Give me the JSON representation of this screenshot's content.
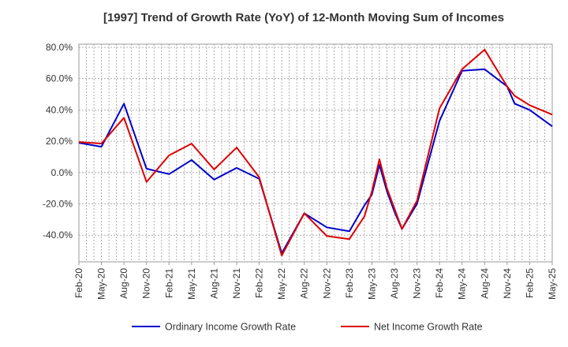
{
  "chart_data": {
    "type": "line",
    "title": "[1997]  Trend of Growth Rate (YoY) of 12-Month Moving Sum of Incomes",
    "xlabel": "",
    "ylabel": "",
    "ylim": [
      -57,
      82
    ],
    "y_ticks": [
      "80.0%",
      "60.0%",
      "40.0%",
      "20.0%",
      "0.0%",
      "-20.0%",
      "-40.0%"
    ],
    "y_tick_values": [
      80,
      60,
      40,
      20,
      0,
      -20,
      -40
    ],
    "x_tick_labels": [
      "Feb-20",
      "May-20",
      "Aug-20",
      "Nov-20",
      "Feb-21",
      "May-21",
      "Aug-21",
      "Nov-21",
      "Feb-22",
      "May-22",
      "Aug-22",
      "Nov-22",
      "Feb-23",
      "May-23",
      "Aug-23",
      "Nov-23",
      "Feb-24",
      "May-24",
      "Aug-24",
      "Nov-24",
      "Feb-25",
      "May-25"
    ],
    "x_months_range": [
      0,
      63
    ],
    "grid": true,
    "legend_position": "bottom",
    "series": [
      {
        "name": "Ordinary Income Growth Rate",
        "color": "#0000cc",
        "x": [
          0,
          3,
          6,
          9,
          12,
          15,
          18,
          21,
          24,
          27,
          30,
          33,
          36,
          38,
          39,
          40,
          41,
          42,
          43,
          45,
          48,
          51,
          54,
          57,
          58,
          60,
          63
        ],
        "values": [
          19,
          16.5,
          44,
          2.5,
          -1,
          8,
          -4.5,
          3,
          -4,
          -51.5,
          -26,
          -35,
          -37.5,
          -21,
          -14,
          5,
          -12,
          -25,
          -36,
          -20,
          33,
          65,
          66,
          55,
          44,
          40,
          29.5
        ]
      },
      {
        "name": "Net Income Growth Rate",
        "color": "#dd0000",
        "x": [
          0,
          3,
          6,
          9,
          12,
          15,
          18,
          21,
          24,
          27,
          30,
          33,
          36,
          38,
          39,
          40,
          41,
          42,
          43,
          45,
          48,
          51,
          54,
          57,
          58,
          60,
          63
        ],
        "values": [
          19.5,
          18.5,
          35,
          -6,
          11,
          18.5,
          2,
          16,
          -3,
          -53,
          -26,
          -40.5,
          -42.5,
          -28,
          -12,
          8.5,
          -10,
          -23,
          -36,
          -18,
          41,
          66,
          78.5,
          55,
          49,
          43,
          37
        ]
      }
    ]
  }
}
